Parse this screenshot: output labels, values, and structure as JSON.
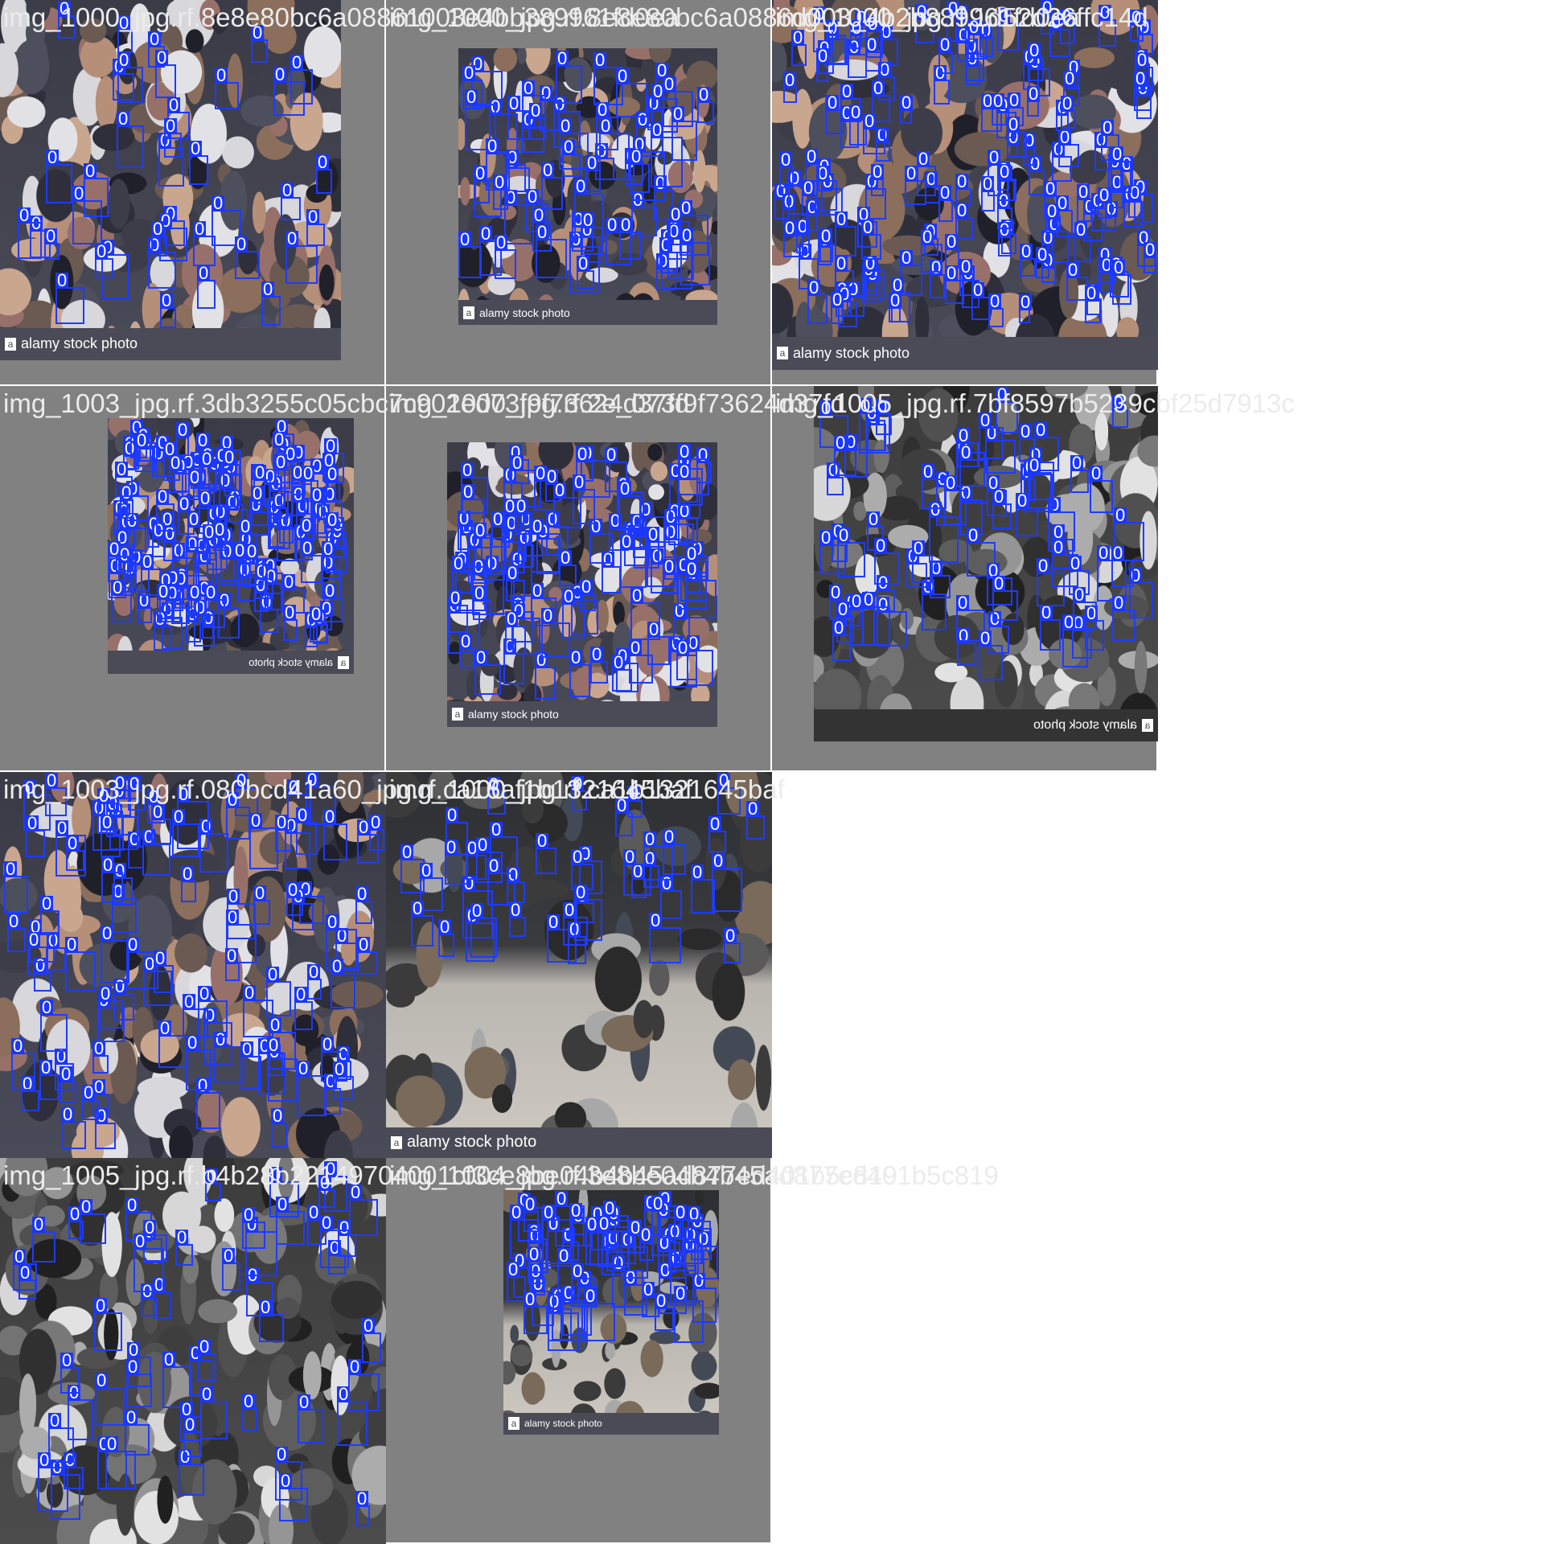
{
  "watermark_text": "alamy stock photo",
  "box_label": "0",
  "colors": {
    "box": "#1f3bff",
    "label_bg": "#1a36ff",
    "tile_bg": "#818181",
    "filename": "#ececec",
    "watermark_bar": "#4a4b57"
  },
  "tiles": [
    {
      "filename": "img_1000_jpg.rf.8e8e80bc6a08861003e4bb389961fd0ea",
      "boxes": 38,
      "grayscale": false
    },
    {
      "filename": "img_1000_jpg.rf.8e8e80bc6a0886d003_4b2b889961fd0ea",
      "boxes": 62,
      "grayscale": false
    },
    {
      "filename": "img_1000_jpg.rf.1d52d26ffc14d",
      "boxes": 150,
      "grayscale": false
    },
    {
      "filename": "img_1003_jpg.rf.3db3255c05cbc7c902ed73f9f73624d37fd",
      "boxes": 140,
      "grayscale": false
    },
    {
      "filename": "img_1000_jpg.rf.2e_073f9f73624d37fd",
      "boxes": 90,
      "grayscale": false
    },
    {
      "filename": "img_1005_jpg.rf.7bf8597b5239cbf25d7913c",
      "boxes": 70,
      "grayscale": true
    },
    {
      "filename": "img_1003_jpg.rf.080bcd41a60_jpg.rf.ca16af1b1321645baf",
      "boxes": 95,
      "grayscale": false
    },
    {
      "filename": "img_1000_jpg.rf.ca1b1321645baf",
      "boxes": 40,
      "grayscale": false
    },
    {
      "filename": "img_1005_jpg.rf.b4b28b22149704001cf3ce8be04b4b45ad877ed401b5c819",
      "boxes": 55,
      "grayscale": true
    },
    {
      "filename": "img_1004_jpg.rf.3e8be04b4b45ad877ed401b5c819",
      "boxes": 60,
      "grayscale": false
    }
  ]
}
